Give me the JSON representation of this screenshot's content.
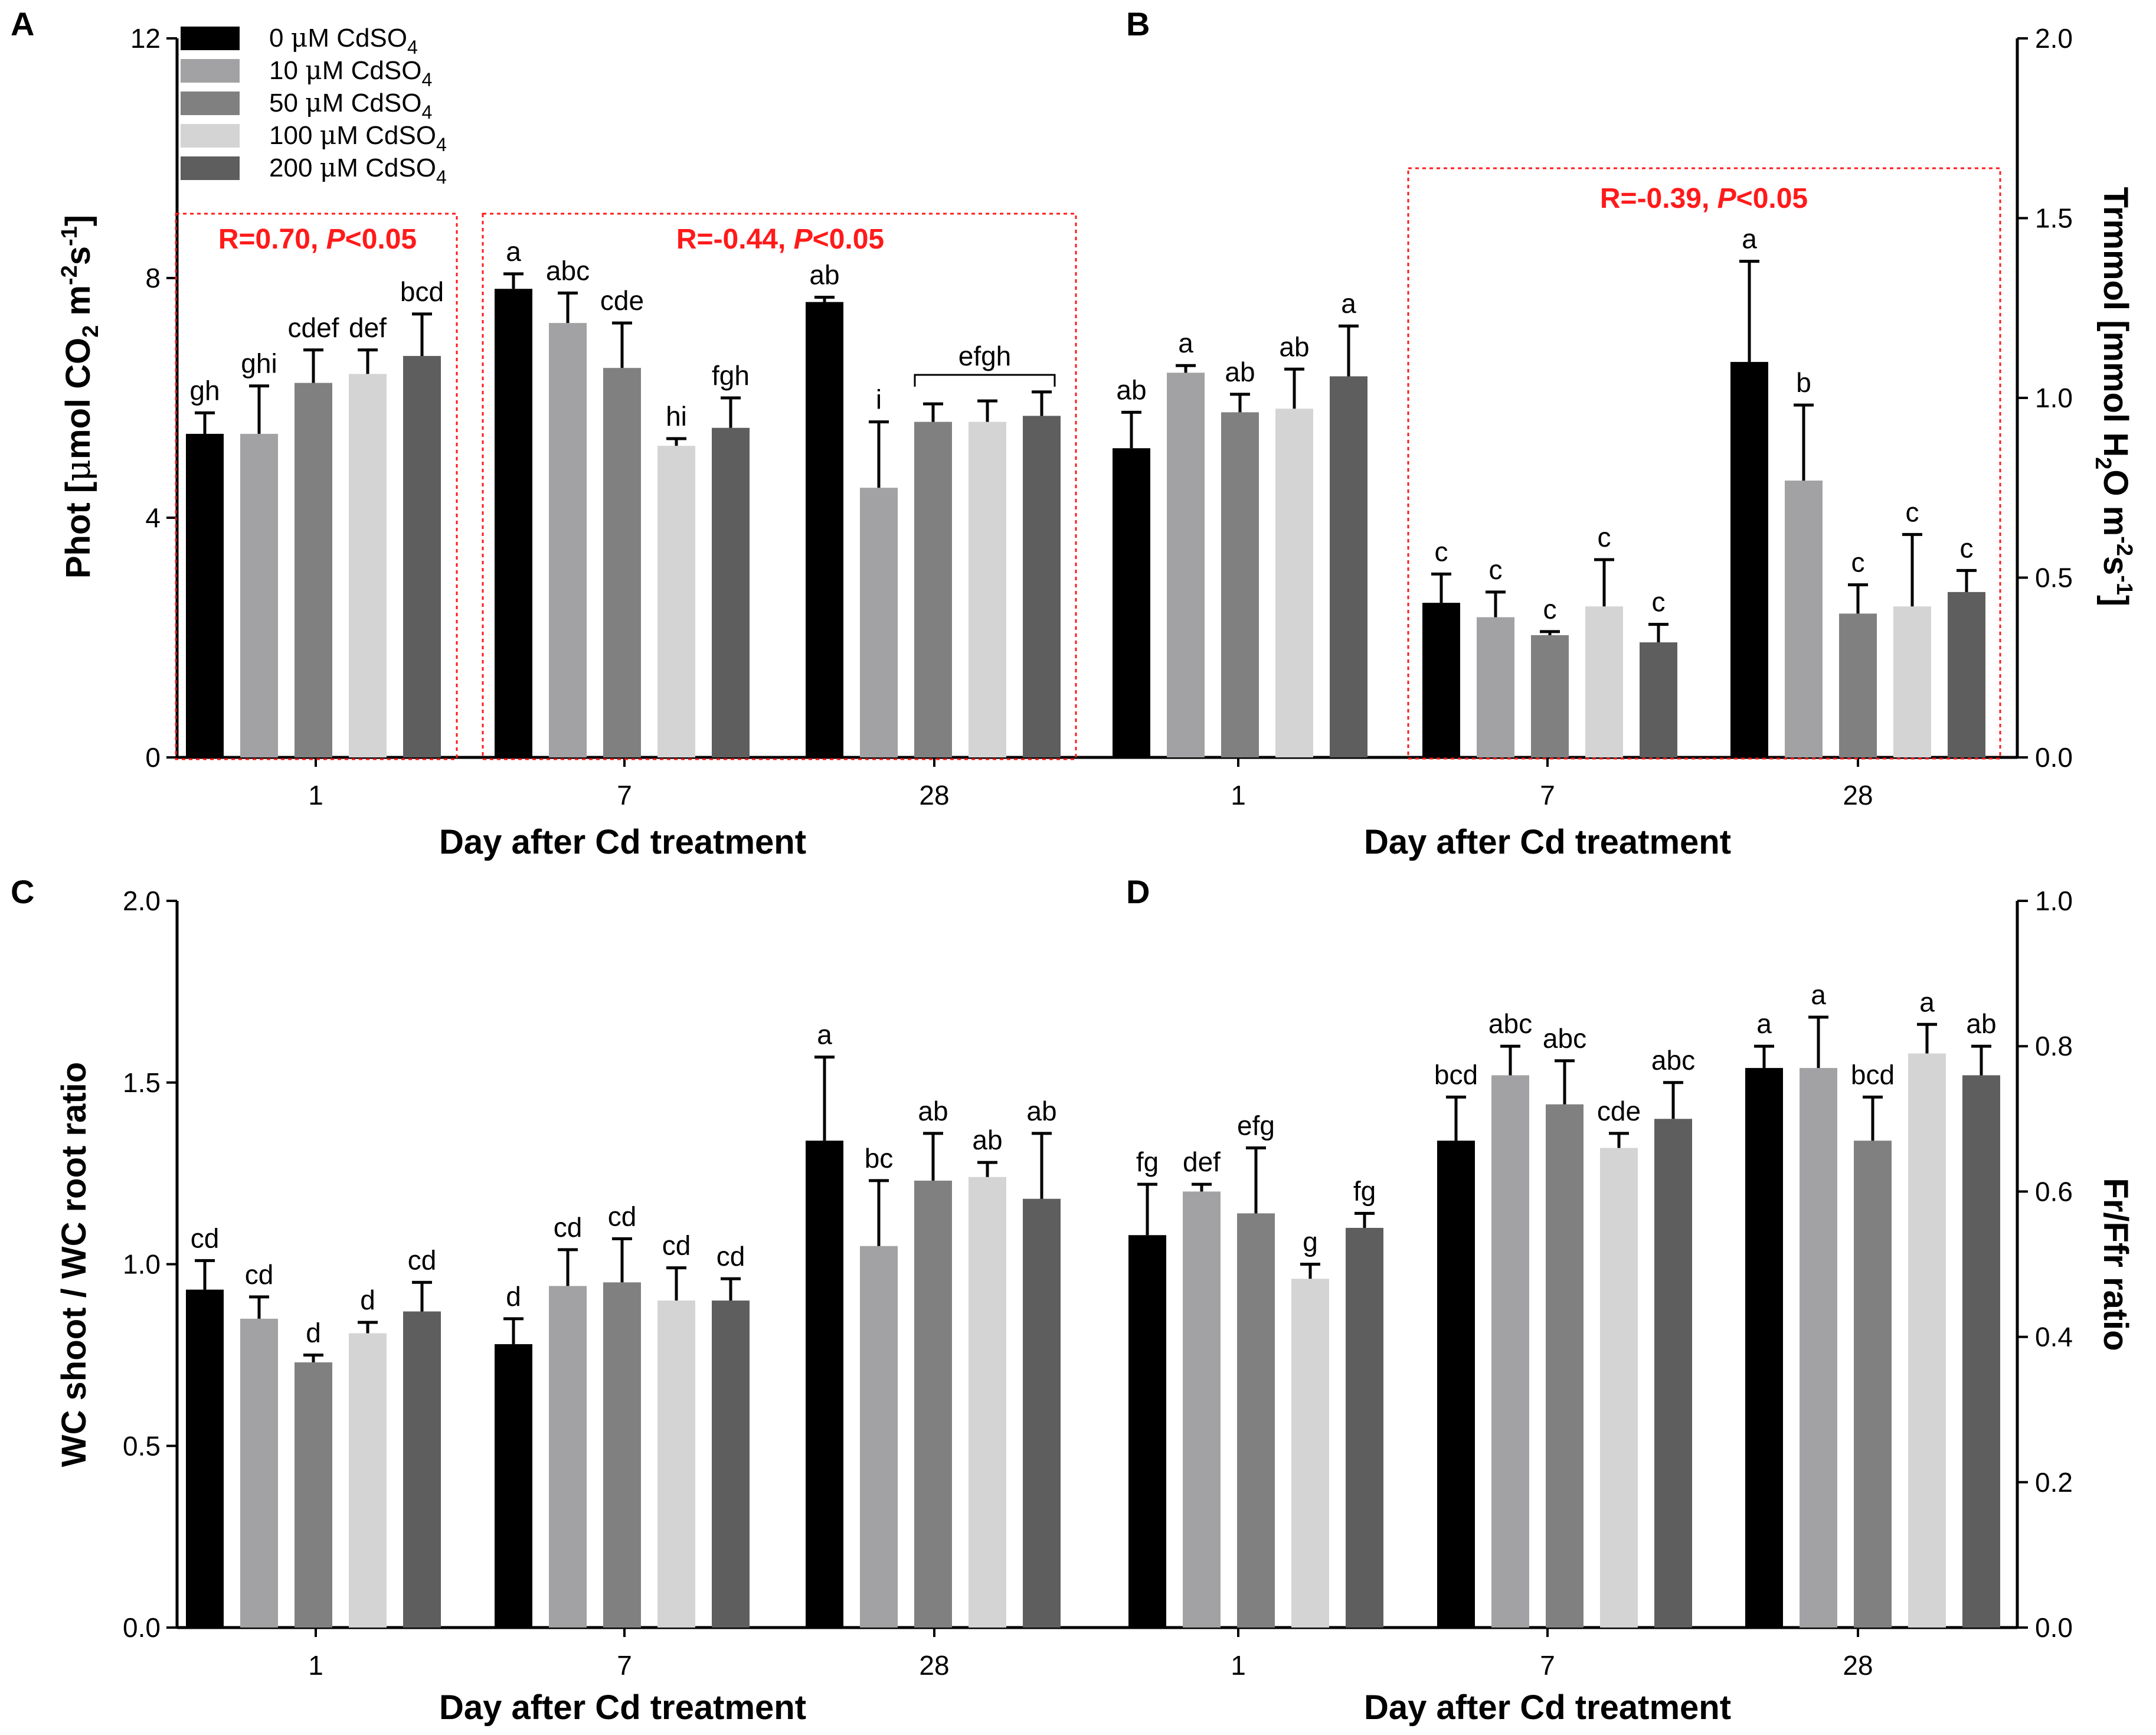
{
  "chart_data": [
    {
      "id": "A",
      "type": "bar",
      "panel_label": "A",
      "ylabel": "Phot [μmol CO2 m-2s-1]",
      "ylabel_parts": [
        "Phot [",
        "μ",
        "mol CO",
        "2",
        " m",
        "-2",
        "s",
        "-1",
        "]"
      ],
      "xlabel": "Day after Cd treatment",
      "categories": [
        "1",
        "7",
        "28"
      ],
      "ylim": [
        0,
        12
      ],
      "yticks": [
        0,
        4,
        8,
        12
      ],
      "ytick_labels": [
        "0",
        "4",
        "8",
        "12"
      ],
      "series": [
        {
          "name": "0 μM CdSO4",
          "values": [
            5.4,
            7.82,
            7.6
          ],
          "errors": [
            0.35,
            0.25,
            0.08
          ],
          "labels": [
            "gh",
            "a",
            "ab"
          ]
        },
        {
          "name": "10 μM CdSO4",
          "values": [
            5.4,
            7.25,
            4.5
          ],
          "errors": [
            0.8,
            0.5,
            1.1
          ],
          "labels": [
            "ghi",
            "abc",
            "i"
          ]
        },
        {
          "name": "50 μM CdSO4",
          "values": [
            6.25,
            6.5,
            5.6
          ],
          "errors": [
            0.55,
            0.75,
            0.3
          ],
          "labels": [
            "cdef",
            "cde",
            ""
          ]
        },
        {
          "name": "100 μM CdSO4",
          "values": [
            6.4,
            5.2,
            5.6
          ],
          "errors": [
            0.4,
            0.12,
            0.35
          ],
          "labels": [
            "def",
            "hi",
            ""
          ]
        },
        {
          "name": "200 μM CdSO4",
          "values": [
            6.7,
            5.5,
            5.7
          ],
          "errors": [
            0.7,
            0.5,
            0.4
          ],
          "labels": [
            "bcd",
            "fgh",
            ""
          ]
        }
      ],
      "bracket_label": "efgh",
      "correlations": [
        "R=0.70, P<0.05",
        "R=-0.44, P<0.05"
      ]
    },
    {
      "id": "B",
      "type": "bar",
      "panel_label": "B",
      "ylabel": "Trmmol [mmol H2O m-2s-1]",
      "ylabel_parts": [
        "Trmmol [mmol H",
        "2",
        "O m",
        "-2",
        "s",
        "-1",
        "]"
      ],
      "xlabel": "Day after Cd treatment",
      "categories": [
        "1",
        "7",
        "28"
      ],
      "ylim": [
        0,
        2
      ],
      "yticks": [
        0,
        0.5,
        1,
        1.5,
        2
      ],
      "ytick_labels": [
        "0.0",
        "0.5",
        "1.0",
        "1.5",
        "2.0"
      ],
      "series": [
        {
          "name": "0 μM CdSO4",
          "values": [
            0.86,
            0.43,
            1.1
          ],
          "errors": [
            0.1,
            0.08,
            0.28
          ],
          "labels": [
            "ab",
            "c",
            "a"
          ]
        },
        {
          "name": "10 μM CdSO4",
          "values": [
            1.07,
            0.39,
            0.77
          ],
          "errors": [
            0.02,
            0.07,
            0.21
          ],
          "labels": [
            "a",
            "c",
            "b"
          ]
        },
        {
          "name": "50 μM CdSO4",
          "values": [
            0.96,
            0.34,
            0.4
          ],
          "errors": [
            0.05,
            0.01,
            0.08
          ],
          "labels": [
            "ab",
            "c",
            "c"
          ]
        },
        {
          "name": "100 μM CdSO4",
          "values": [
            0.97,
            0.42,
            0.42
          ],
          "errors": [
            0.11,
            0.13,
            0.2
          ],
          "labels": [
            "ab",
            "c",
            "c"
          ]
        },
        {
          "name": "200 μM CdSO4",
          "values": [
            1.06,
            0.32,
            0.46
          ],
          "errors": [
            0.14,
            0.05,
            0.06
          ],
          "labels": [
            "a",
            "c",
            "c"
          ]
        }
      ],
      "correlations": [
        "R=-0.39, P<0.05"
      ]
    },
    {
      "id": "C",
      "type": "bar",
      "panel_label": "C",
      "ylabel": "WC shoot / WC root ratio",
      "xlabel": "Day after Cd treatment",
      "categories": [
        "1",
        "7",
        "28"
      ],
      "ylim": [
        0,
        2
      ],
      "yticks": [
        0,
        0.5,
        1,
        1.5,
        2
      ],
      "ytick_labels": [
        "0.0",
        "0.5",
        "1.0",
        "1.5",
        "2.0"
      ],
      "series": [
        {
          "name": "0 μM CdSO4",
          "values": [
            0.93,
            0.78,
            1.34
          ],
          "errors": [
            0.08,
            0.07,
            0.23
          ],
          "labels": [
            "cd",
            "d",
            "a"
          ]
        },
        {
          "name": "10 μM CdSO4",
          "values": [
            0.85,
            0.94,
            1.05
          ],
          "errors": [
            0.06,
            0.1,
            0.18
          ],
          "labels": [
            "cd",
            "cd",
            "bc"
          ]
        },
        {
          "name": "50 μM CdSO4",
          "values": [
            0.73,
            0.95,
            1.23
          ],
          "errors": [
            0.02,
            0.12,
            0.13
          ],
          "labels": [
            "d",
            "cd",
            "ab"
          ]
        },
        {
          "name": "100 μM CdSO4",
          "values": [
            0.81,
            0.9,
            1.24
          ],
          "errors": [
            0.03,
            0.09,
            0.04
          ],
          "labels": [
            "d",
            "cd",
            "ab"
          ]
        },
        {
          "name": "200 μM CdSO4",
          "values": [
            0.87,
            0.9,
            1.18
          ],
          "errors": [
            0.08,
            0.06,
            0.18
          ],
          "labels": [
            "cd",
            "cd",
            "ab"
          ]
        }
      ]
    },
    {
      "id": "D",
      "type": "bar",
      "panel_label": "D",
      "ylabel": "Fr/Ffr ratio",
      "xlabel": "Day after Cd treatment",
      "categories": [
        "1",
        "7",
        "28"
      ],
      "ylim": [
        0,
        1
      ],
      "yticks": [
        0,
        0.2,
        0.4,
        0.6,
        0.8,
        1
      ],
      "ytick_labels": [
        "0.0",
        "0.2",
        "0.4",
        "0.6",
        "0.8",
        "1.0"
      ],
      "series": [
        {
          "name": "0 μM CdSO4",
          "values": [
            0.54,
            0.67,
            0.77
          ],
          "errors": [
            0.07,
            0.06,
            0.03
          ],
          "labels": [
            "fg",
            "bcd",
            "a"
          ]
        },
        {
          "name": "10 μM CdSO4",
          "values": [
            0.6,
            0.76,
            0.77
          ],
          "errors": [
            0.01,
            0.04,
            0.07
          ],
          "labels": [
            "def",
            "abc",
            "a"
          ]
        },
        {
          "name": "50 μM CdSO4",
          "values": [
            0.57,
            0.72,
            0.67
          ],
          "errors": [
            0.09,
            0.06,
            0.06
          ],
          "labels": [
            "efg",
            "abc",
            "bcd"
          ]
        },
        {
          "name": "100 μM CdSO4",
          "values": [
            0.48,
            0.66,
            0.79
          ],
          "errors": [
            0.02,
            0.02,
            0.04
          ],
          "labels": [
            "g",
            "cde",
            "a"
          ]
        },
        {
          "name": "200 μM CdSO4",
          "values": [
            0.55,
            0.7,
            0.76
          ],
          "errors": [
            0.02,
            0.05,
            0.04
          ],
          "labels": [
            "fg",
            "abc",
            "ab"
          ]
        }
      ]
    }
  ],
  "legend": {
    "items": [
      {
        "prefix": "0 ",
        "mu": "μ",
        "text": "M CdSO",
        "sub": "4"
      },
      {
        "prefix": "10 ",
        "mu": "μ",
        "text": "M CdSO",
        "sub": "4"
      },
      {
        "prefix": "50 ",
        "mu": "μ",
        "text": "M CdSO",
        "sub": "4"
      },
      {
        "prefix": "100 ",
        "mu": "μ",
        "text": "M CdSO",
        "sub": "4"
      },
      {
        "prefix": "200 ",
        "mu": "μ",
        "text": "M CdSO",
        "sub": "4"
      }
    ]
  },
  "colors": [
    "#000000",
    "#a2a2a4",
    "#808080",
    "#d4d4d4",
    "#5e5e5e"
  ],
  "correlation_color": "#ff1a1a"
}
